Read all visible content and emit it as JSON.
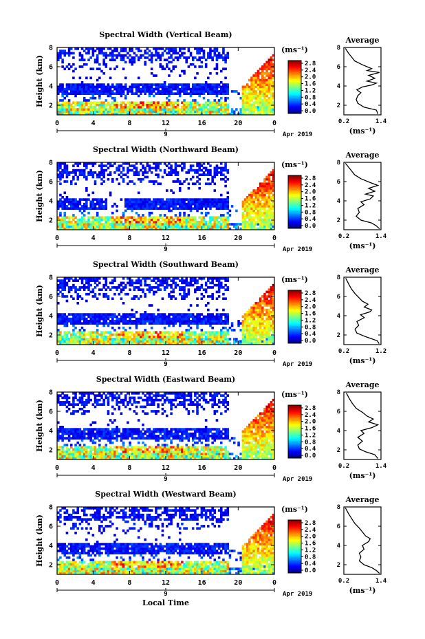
{
  "chart_data": [
    {
      "type": "heatmap",
      "title": "Spectral Width (Vertical Beam)",
      "ylabel": "Height (km)",
      "x_ticks": [
        "0",
        "4",
        "8",
        "12",
        "16",
        "20",
        "0"
      ],
      "y_ticks": [
        "2",
        "4",
        "6",
        "8"
      ],
      "date_ticks": [
        "9"
      ],
      "date_label": "Apr 2019",
      "xlim": [
        0,
        24
      ],
      "ylim": [
        1,
        8
      ],
      "colorbar": {
        "unit": "(ms⁻¹)",
        "ticks": [
          "2.8",
          "2.4",
          "2.0",
          "1.6",
          "1.2",
          "0.8",
          "0.4",
          "0.0"
        ],
        "range": [
          0,
          2.8
        ]
      },
      "average": {
        "title": "Average",
        "xlabel": "(ms⁻¹)",
        "x_ticks": [
          "0.2",
          "1.4"
        ],
        "xlim": [
          0.2,
          1.4
        ],
        "y_ticks": [
          "2",
          "4",
          "6",
          "8"
        ],
        "ylim": [
          1,
          8
        ],
        "profile": [
          [
            1.3,
            1.1
          ],
          [
            1.25,
            1.5
          ],
          [
            0.85,
            1.8
          ],
          [
            0.65,
            2.2
          ],
          [
            0.6,
            2.6
          ],
          [
            0.65,
            3.0
          ],
          [
            0.75,
            3.3
          ],
          [
            0.62,
            3.6
          ],
          [
            0.8,
            3.9
          ],
          [
            1.1,
            4.1
          ],
          [
            1.25,
            4.3
          ],
          [
            0.95,
            4.5
          ],
          [
            1.2,
            4.8
          ],
          [
            1.0,
            5.1
          ],
          [
            1.35,
            5.4
          ],
          [
            0.95,
            5.6
          ],
          [
            1.1,
            5.8
          ],
          [
            0.8,
            6.2
          ],
          [
            0.55,
            6.6
          ],
          [
            0.45,
            7.0
          ],
          [
            0.35,
            7.4
          ],
          [
            0.25,
            7.9
          ]
        ]
      }
    },
    {
      "type": "heatmap",
      "title": "Spectral Width (Northward Beam)",
      "ylabel": "Height (km)",
      "x_ticks": [
        "0",
        "4",
        "8",
        "12",
        "16",
        "20",
        "0"
      ],
      "y_ticks": [
        "2",
        "4",
        "6",
        "8"
      ],
      "date_ticks": [
        "9"
      ],
      "date_label": "Apr 2019",
      "xlim": [
        0,
        24
      ],
      "ylim": [
        1,
        8
      ],
      "colorbar": {
        "unit": "(ms⁻¹)",
        "ticks": [
          "2.8",
          "2.4",
          "2.0",
          "1.6",
          "1.2",
          "0.8",
          "0.4",
          "0.0"
        ],
        "range": [
          0,
          2.8
        ]
      },
      "average": {
        "title": "Average",
        "xlabel": "(ms⁻¹)",
        "x_ticks": [
          "0.2",
          "1.4"
        ],
        "xlim": [
          0.2,
          1.4
        ],
        "y_ticks": [
          "2",
          "4",
          "6",
          "8"
        ],
        "ylim": [
          1,
          8
        ],
        "profile": [
          [
            1.35,
            1.1
          ],
          [
            1.25,
            1.4
          ],
          [
            1.1,
            1.7
          ],
          [
            0.75,
            2.0
          ],
          [
            0.6,
            2.4
          ],
          [
            0.7,
            2.8
          ],
          [
            0.65,
            3.2
          ],
          [
            0.85,
            3.6
          ],
          [
            0.75,
            3.9
          ],
          [
            1.05,
            4.2
          ],
          [
            1.15,
            4.5
          ],
          [
            0.9,
            4.7
          ],
          [
            1.2,
            5.0
          ],
          [
            1.0,
            5.3
          ],
          [
            1.3,
            5.6
          ],
          [
            1.05,
            5.9
          ],
          [
            0.75,
            6.3
          ],
          [
            0.55,
            6.7
          ],
          [
            0.45,
            7.1
          ],
          [
            0.35,
            7.5
          ],
          [
            0.25,
            7.9
          ]
        ]
      }
    },
    {
      "type": "heatmap",
      "title": "Spectral Width (Southward Beam)",
      "ylabel": "Height (km)",
      "x_ticks": [
        "0",
        "4",
        "8",
        "12",
        "16",
        "20",
        "0"
      ],
      "y_ticks": [
        "2",
        "4",
        "6",
        "8"
      ],
      "date_ticks": [
        "9"
      ],
      "date_label": "Apr 2019",
      "xlim": [
        0,
        24
      ],
      "ylim": [
        1,
        8
      ],
      "colorbar": {
        "unit": "(ms⁻¹)",
        "ticks": [
          "2.8",
          "2.4",
          "2.0",
          "1.6",
          "1.2",
          "0.8",
          "0.4",
          "0.0"
        ],
        "range": [
          0,
          2.8
        ]
      },
      "average": {
        "title": "Average",
        "xlabel": "(ms⁻¹)",
        "x_ticks": [
          "0.2",
          "1.2"
        ],
        "xlim": [
          0.2,
          1.2
        ],
        "y_ticks": [
          "2",
          "4",
          "6",
          "8"
        ],
        "ylim": [
          1,
          8
        ],
        "profile": [
          [
            1.15,
            1.1
          ],
          [
            1.1,
            1.4
          ],
          [
            0.8,
            1.8
          ],
          [
            0.55,
            2.2
          ],
          [
            0.5,
            2.6
          ],
          [
            0.6,
            3.0
          ],
          [
            0.55,
            3.4
          ],
          [
            0.75,
            3.8
          ],
          [
            0.65,
            4.1
          ],
          [
            0.9,
            4.4
          ],
          [
            0.95,
            4.6
          ],
          [
            0.75,
            4.9
          ],
          [
            0.85,
            5.2
          ],
          [
            0.7,
            5.5
          ],
          [
            0.6,
            5.9
          ],
          [
            0.5,
            6.3
          ],
          [
            0.4,
            6.8
          ],
          [
            0.33,
            7.3
          ],
          [
            0.25,
            7.9
          ]
        ]
      }
    },
    {
      "type": "heatmap",
      "title": "Spectral Width (Eastward Beam)",
      "ylabel": "Height (km)",
      "x_ticks": [
        "0",
        "4",
        "8",
        "12",
        "16",
        "20",
        "0"
      ],
      "y_ticks": [
        "2",
        "4",
        "6",
        "8"
      ],
      "date_ticks": [
        "9"
      ],
      "date_label": "Apr 2019",
      "xlim": [
        0,
        24
      ],
      "ylim": [
        1,
        8
      ],
      "colorbar": {
        "unit": "(ms⁻¹)",
        "ticks": [
          "2.8",
          "2.4",
          "2.0",
          "1.6",
          "1.2",
          "0.8",
          "0.4",
          "0.0"
        ],
        "range": [
          0,
          2.8
        ]
      },
      "average": {
        "title": "Average",
        "xlabel": "(ms⁻¹)",
        "x_ticks": [
          "0.2",
          "1.4"
        ],
        "xlim": [
          0.2,
          1.4
        ],
        "y_ticks": [
          "2",
          "4",
          "6",
          "8"
        ],
        "ylim": [
          1,
          8
        ],
        "profile": [
          [
            1.3,
            1.1
          ],
          [
            1.2,
            1.5
          ],
          [
            0.9,
            1.8
          ],
          [
            0.7,
            2.1
          ],
          [
            0.65,
            2.5
          ],
          [
            0.8,
            2.9
          ],
          [
            0.65,
            3.3
          ],
          [
            0.85,
            3.7
          ],
          [
            0.75,
            4.0
          ],
          [
            1.1,
            4.3
          ],
          [
            1.3,
            4.6
          ],
          [
            1.0,
            4.9
          ],
          [
            1.15,
            5.2
          ],
          [
            0.95,
            5.5
          ],
          [
            0.8,
            5.9
          ],
          [
            0.6,
            6.3
          ],
          [
            0.48,
            6.8
          ],
          [
            0.38,
            7.3
          ],
          [
            0.28,
            7.9
          ]
        ]
      }
    },
    {
      "type": "heatmap",
      "title": "Spectral Width (Westward Beam)",
      "ylabel": "Height (km)",
      "xlabel": "Local Time",
      "x_ticks": [
        "0",
        "4",
        "8",
        "12",
        "16",
        "20",
        "0"
      ],
      "y_ticks": [
        "2",
        "4",
        "6",
        "8"
      ],
      "date_ticks": [
        "9"
      ],
      "date_label": "Apr 2019",
      "xlim": [
        0,
        24
      ],
      "ylim": [
        1,
        8
      ],
      "colorbar": {
        "unit": "(ms⁻¹)",
        "ticks": [
          "2.8",
          "2.4",
          "2.0",
          "1.6",
          "1.2",
          "0.8",
          "0.4",
          "0.0"
        ],
        "range": [
          0,
          2.8
        ]
      },
      "average": {
        "title": "Average",
        "xlabel": "(ms⁻¹)",
        "x_ticks": [
          "0.2",
          "1.4"
        ],
        "xlim": [
          0.2,
          1.4
        ],
        "y_ticks": [
          "2",
          "4",
          "6",
          "8"
        ],
        "ylim": [
          1,
          8
        ],
        "profile": [
          [
            1.35,
            1.1
          ],
          [
            1.25,
            1.4
          ],
          [
            1.1,
            1.7
          ],
          [
            0.85,
            2.0
          ],
          [
            0.7,
            2.4
          ],
          [
            0.75,
            2.8
          ],
          [
            0.7,
            3.2
          ],
          [
            0.85,
            3.6
          ],
          [
            0.8,
            4.0
          ],
          [
            1.0,
            4.4
          ],
          [
            1.05,
            4.7
          ],
          [
            0.9,
            5.0
          ],
          [
            0.8,
            5.4
          ],
          [
            0.7,
            5.8
          ],
          [
            0.55,
            6.3
          ],
          [
            0.45,
            6.8
          ],
          [
            0.35,
            7.3
          ],
          [
            0.25,
            7.9
          ]
        ]
      }
    }
  ]
}
